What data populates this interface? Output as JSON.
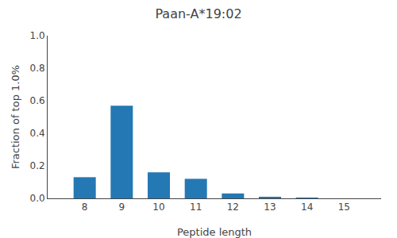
{
  "chart_data": {
    "type": "bar",
    "title": "Paan-A*19:02",
    "xlabel": "Peptide length",
    "ylabel": "Fraction of top 1.0%",
    "categories": [
      8,
      9,
      10,
      11,
      12,
      13,
      14,
      15
    ],
    "values": [
      0.13,
      0.57,
      0.16,
      0.12,
      0.03,
      0.005,
      0.003,
      0.0
    ],
    "color": "#2478b4",
    "xlim": [
      7.0,
      16.0
    ],
    "xticks": [
      8,
      9,
      10,
      11,
      12,
      13,
      14,
      15
    ],
    "ylim": [
      0.0,
      1.0
    ],
    "yticks": [
      {
        "value": 0,
        "label": "0.0"
      },
      0.2,
      0.4,
      0.6,
      0.8,
      {
        "value": 1,
        "label": "1.0"
      }
    ],
    "grid": false
  }
}
